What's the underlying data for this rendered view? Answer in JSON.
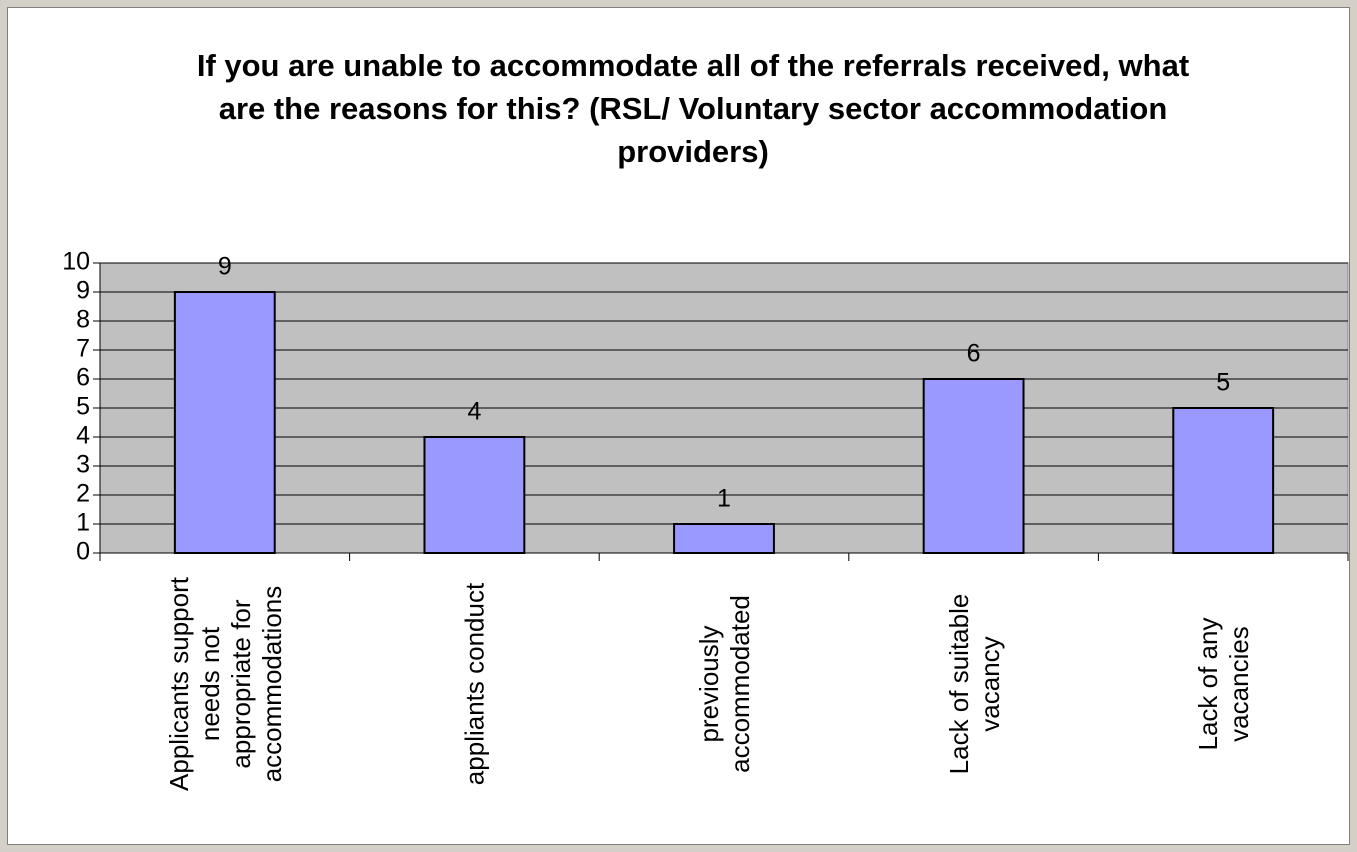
{
  "chart_data": {
    "type": "bar",
    "title": "If you are unable to accommodate all of the referrals received, what are the reasons for this? (RSL/ Voluntary sector accommodation providers)",
    "categories": [
      "Applicants support needs not appropriate for accommodations",
      "appliants conduct",
      "previously accommodated",
      "Lack of suitable vacancy",
      "Lack of any vacancies"
    ],
    "values": [
      9,
      4,
      1,
      6,
      5
    ],
    "color": "#9999ff",
    "ylim": [
      0,
      10
    ],
    "yticks": [
      0,
      1,
      2,
      3,
      4,
      5,
      6,
      7,
      8,
      9,
      10
    ],
    "grid": true
  }
}
